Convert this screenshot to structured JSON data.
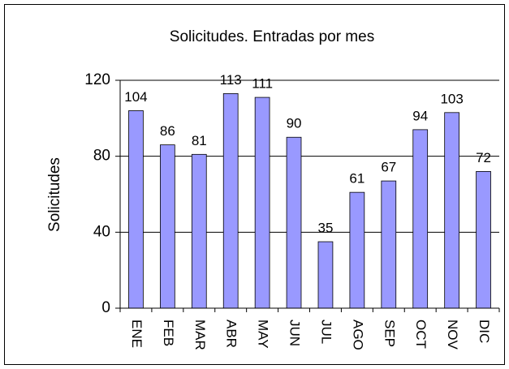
{
  "chart_data": {
    "type": "bar",
    "title": "Solicitudes. Entradas por mes",
    "y_label": "Solicitudes",
    "categories": [
      "ENE",
      "FEB",
      "MAR",
      "ABR",
      "MAY",
      "JUN",
      "JUL",
      "AGO",
      "SEP",
      "OCT",
      "NOV",
      "DIC"
    ],
    "values": [
      104,
      86,
      81,
      113,
      111,
      90,
      35,
      61,
      67,
      94,
      103,
      72
    ],
    "color": "#9999ff",
    "ylim": [
      0,
      120
    ],
    "yticks": [
      0,
      40,
      80,
      120
    ],
    "grid": true
  }
}
